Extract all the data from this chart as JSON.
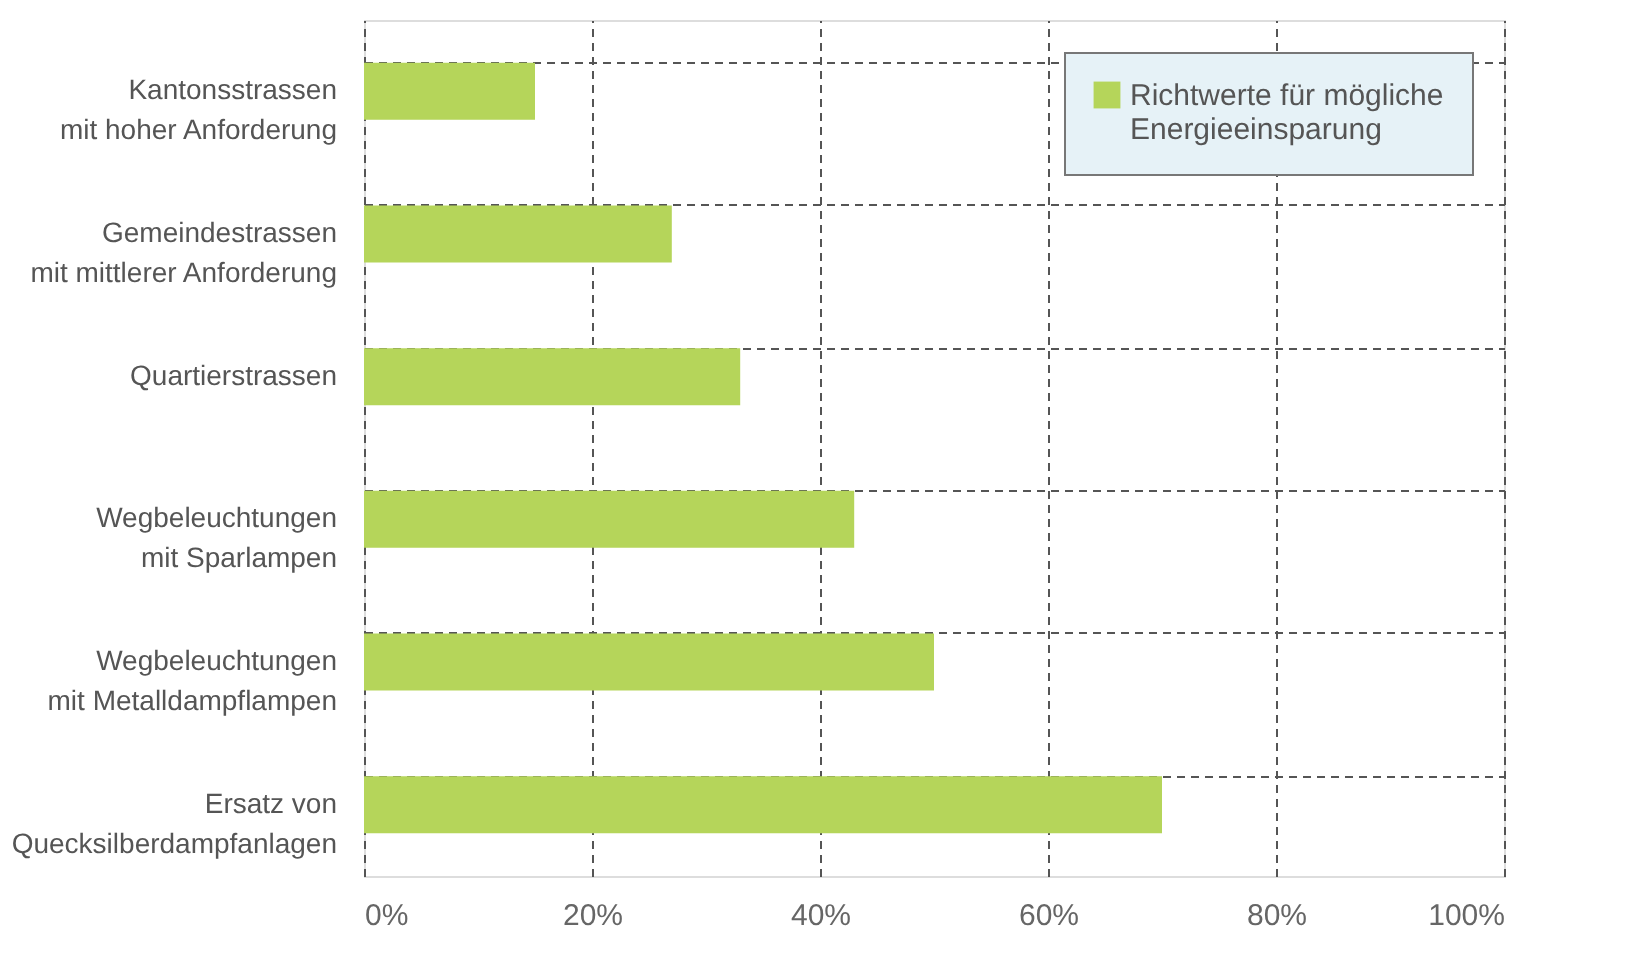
{
  "chart_data": {
    "type": "bar",
    "orientation": "horizontal",
    "categories": [
      "Kantonsstrassen\nmit hoher Anforderung",
      "Gemeindestrassen\nmit mittlerer Anforderung",
      "Quartierstrassen",
      "Wegbeleuchtungen\nmit Sparlampen",
      "Wegbeleuchtungen\nmit Metalldampflampen",
      "Ersatz von\nQuecksilberdampfanlagen"
    ],
    "series": [
      {
        "name": "Richtwerte für mögliche\nEnergieeinsparung",
        "color": "#b5d55a",
        "values": [
          15,
          27,
          33,
          43,
          50,
          70
        ]
      }
    ],
    "xlim": [
      0,
      100
    ],
    "xticks": [
      {
        "value": 0,
        "label": "0%"
      },
      {
        "value": 20,
        "label": "20%"
      },
      {
        "value": 40,
        "label": "40%"
      },
      {
        "value": 60,
        "label": "60%"
      },
      {
        "value": 80,
        "label": "80%"
      },
      {
        "value": 100,
        "label": "100%"
      }
    ],
    "grid": true,
    "legend": "top right"
  }
}
